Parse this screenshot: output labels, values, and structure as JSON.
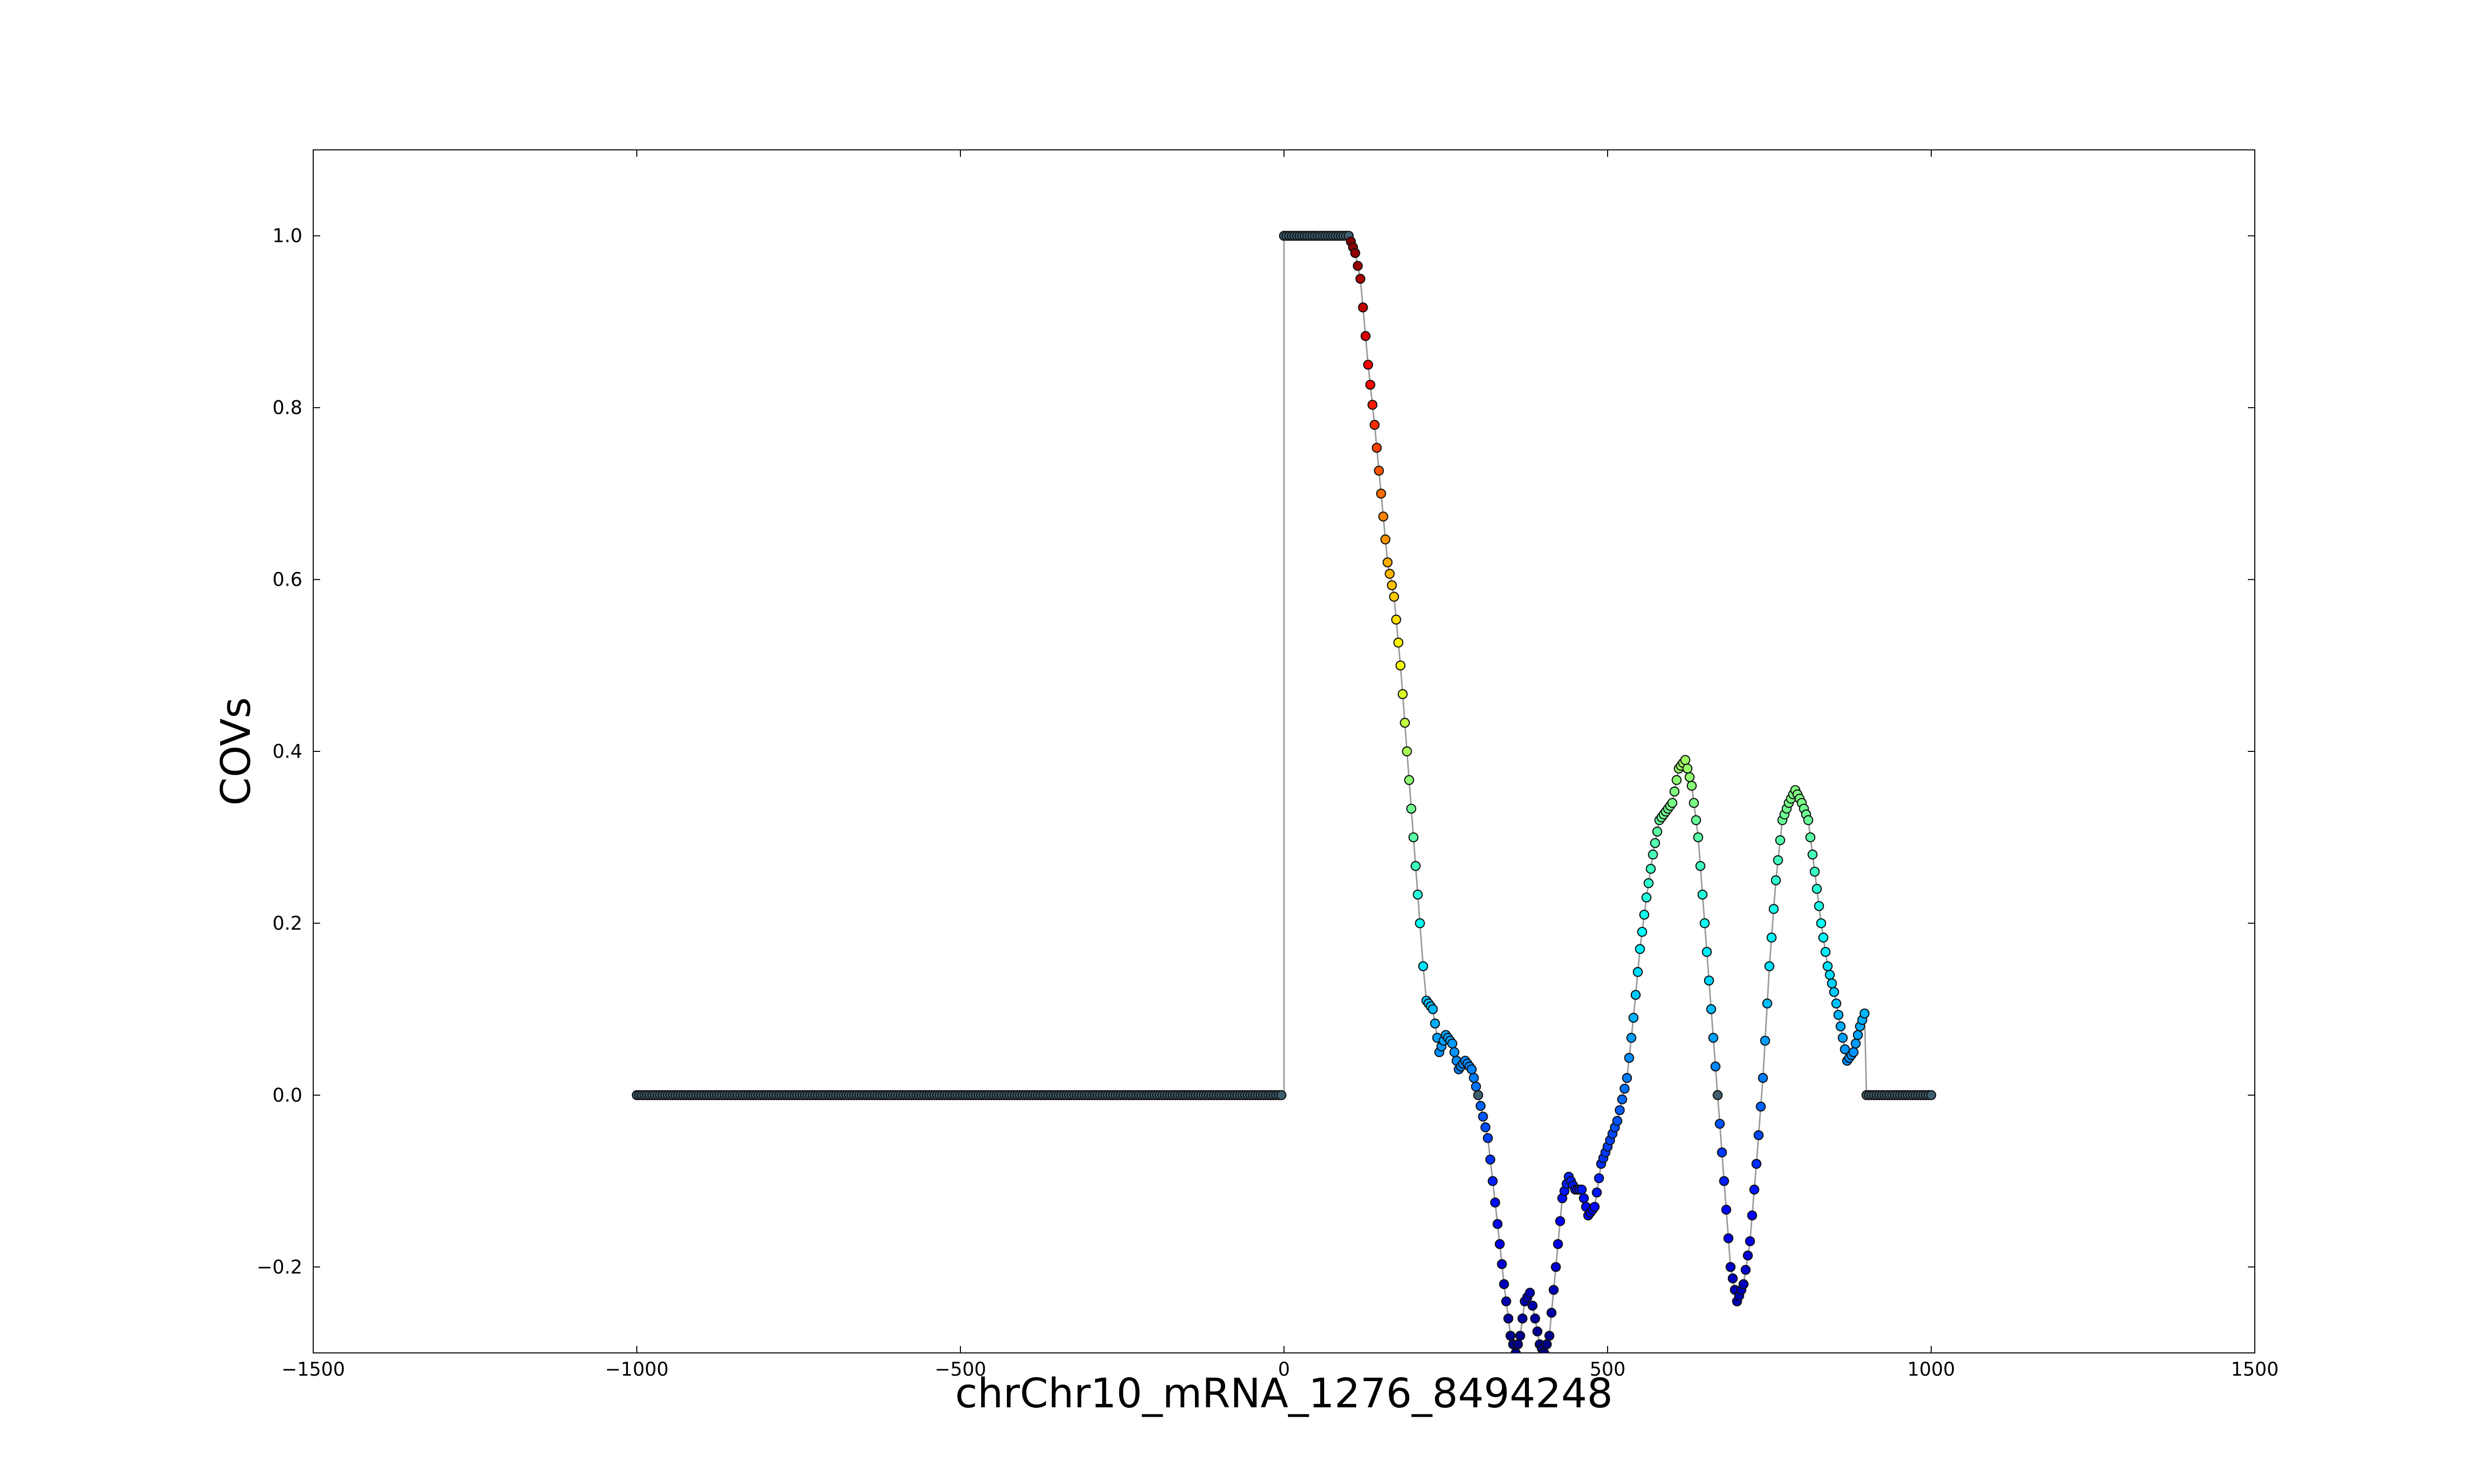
{
  "chart_data": {
    "type": "scatter",
    "title": "",
    "xlabel": "chrChr10_mRNA_1276_8494248",
    "ylabel": "COVs",
    "xlim": [
      -1500,
      1500
    ],
    "ylim": [
      -0.3,
      1.1
    ],
    "grid": false,
    "xticks": [
      {
        "value": -1500,
        "label": "−1500"
      },
      {
        "value": -1000,
        "label": "−1000"
      },
      {
        "value": -500,
        "label": "−500"
      },
      {
        "value": 0,
        "label": "0"
      },
      {
        "value": 500,
        "label": "500"
      },
      {
        "value": 1000,
        "label": "1000"
      },
      {
        "value": 1500,
        "label": "1500"
      }
    ],
    "yticks": [
      {
        "value": -0.2,
        "label": "−0.2"
      },
      {
        "value": 0.0,
        "label": "0.0"
      },
      {
        "value": 0.2,
        "label": "0.2"
      },
      {
        "value": 0.4,
        "label": "0.4"
      },
      {
        "value": 0.6,
        "label": "0.6"
      },
      {
        "value": 0.8,
        "label": "0.8"
      },
      {
        "value": 1.0,
        "label": "1.0"
      }
    ],
    "colormap": "jet (value-mapped, range approx -0.3 to 1.0)",
    "line_color": "#333333",
    "point_stroke": "#000000",
    "series": [
      {
        "points": [
          [
            -1000,
            0.0
          ],
          [
            0,
            0.0
          ],
          [
            0,
            1.0
          ],
          [
            100,
            1.0
          ],
          [
            110,
            0.98
          ],
          [
            118,
            0.95
          ],
          [
            130,
            0.85
          ],
          [
            140,
            0.78
          ],
          [
            150,
            0.7
          ],
          [
            160,
            0.62
          ],
          [
            170,
            0.58
          ],
          [
            180,
            0.5
          ],
          [
            190,
            0.4
          ],
          [
            200,
            0.3
          ],
          [
            210,
            0.2
          ],
          [
            215,
            0.15
          ],
          [
            220,
            0.11
          ],
          [
            230,
            0.1
          ],
          [
            240,
            0.05
          ],
          [
            250,
            0.07
          ],
          [
            260,
            0.06
          ],
          [
            270,
            0.03
          ],
          [
            280,
            0.04
          ],
          [
            290,
            0.03
          ],
          [
            300,
            0.0
          ],
          [
            315,
            -0.05
          ],
          [
            330,
            -0.15
          ],
          [
            340,
            -0.22
          ],
          [
            350,
            -0.28
          ],
          [
            358,
            -0.3
          ],
          [
            365,
            -0.28
          ],
          [
            372,
            -0.24
          ],
          [
            380,
            -0.23
          ],
          [
            388,
            -0.26
          ],
          [
            395,
            -0.29
          ],
          [
            402,
            -0.3
          ],
          [
            410,
            -0.28
          ],
          [
            420,
            -0.2
          ],
          [
            430,
            -0.12
          ],
          [
            440,
            -0.095
          ],
          [
            450,
            -0.11
          ],
          [
            460,
            -0.11
          ],
          [
            470,
            -0.14
          ],
          [
            480,
            -0.13
          ],
          [
            490,
            -0.08
          ],
          [
            500,
            -0.06
          ],
          [
            515,
            -0.03
          ],
          [
            530,
            0.02
          ],
          [
            540,
            0.09
          ],
          [
            550,
            0.17
          ],
          [
            560,
            0.23
          ],
          [
            570,
            0.28
          ],
          [
            580,
            0.32
          ],
          [
            590,
            0.33
          ],
          [
            600,
            0.34
          ],
          [
            610,
            0.38
          ],
          [
            620,
            0.39
          ],
          [
            630,
            0.36
          ],
          [
            640,
            0.3
          ],
          [
            650,
            0.2
          ],
          [
            660,
            0.1
          ],
          [
            670,
            0.0
          ],
          [
            680,
            -0.1
          ],
          [
            690,
            -0.2
          ],
          [
            700,
            -0.24
          ],
          [
            710,
            -0.22
          ],
          [
            720,
            -0.17
          ],
          [
            730,
            -0.08
          ],
          [
            740,
            0.02
          ],
          [
            750,
            0.15
          ],
          [
            760,
            0.25
          ],
          [
            770,
            0.32
          ],
          [
            780,
            0.34
          ],
          [
            790,
            0.355
          ],
          [
            800,
            0.34
          ],
          [
            810,
            0.32
          ],
          [
            820,
            0.26
          ],
          [
            830,
            0.2
          ],
          [
            840,
            0.15
          ],
          [
            850,
            0.12
          ],
          [
            860,
            0.08
          ],
          [
            870,
            0.04
          ],
          [
            880,
            0.05
          ],
          [
            890,
            0.08
          ],
          [
            897,
            0.095
          ],
          [
            900,
            0.0
          ],
          [
            1000,
            0.0
          ]
        ]
      }
    ]
  }
}
